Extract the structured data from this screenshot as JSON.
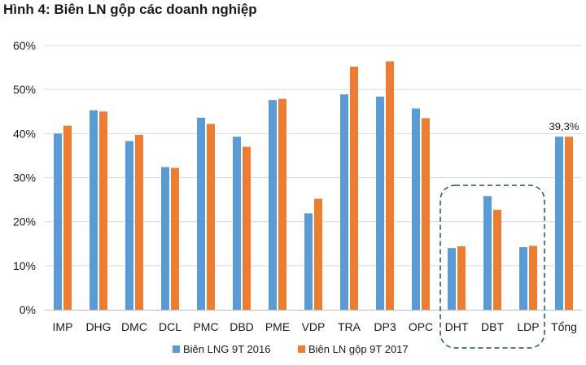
{
  "figure": {
    "title": "Hình 4: Biên LN gộp các doanh nghiệp"
  },
  "chart_data": {
    "type": "bar",
    "title": "Hình 4: Biên LN gộp các doanh nghiệp",
    "xlabel": "",
    "ylabel": "",
    "ylim": [
      0,
      60
    ],
    "yticks": [
      "0%",
      "10%",
      "20%",
      "30%",
      "40%",
      "50%",
      "60%"
    ],
    "categories": [
      "IMP",
      "DHG",
      "DMC",
      "DCL",
      "PMC",
      "DBD",
      "PME",
      "VDP",
      "TRA",
      "DP3",
      "OPC",
      "DHT",
      "DBT",
      "LDP",
      "Tổng"
    ],
    "series": [
      {
        "name": "Biên LNG 9T 2016",
        "color": "#5b9bd5",
        "values": [
          40.0,
          45.3,
          38.3,
          32.4,
          43.6,
          39.3,
          47.6,
          21.9,
          48.9,
          48.4,
          45.7,
          14.0,
          25.8,
          14.2,
          39.3
        ]
      },
      {
        "name": "Biên LN gộp 9T 2017",
        "color": "#ed7d31",
        "values": [
          41.8,
          45.0,
          39.7,
          32.2,
          42.2,
          37.0,
          47.9,
          25.2,
          55.2,
          56.4,
          43.5,
          14.4,
          22.7,
          14.5,
          39.3
        ]
      }
    ],
    "annotations": [
      {
        "category": "Tổng",
        "text": "39,3%"
      }
    ],
    "highlight_group": [
      "DHT",
      "DBT",
      "LDP"
    ],
    "grid": true,
    "gridline_color": "#d9d9d9",
    "legend_position": "bottom"
  }
}
